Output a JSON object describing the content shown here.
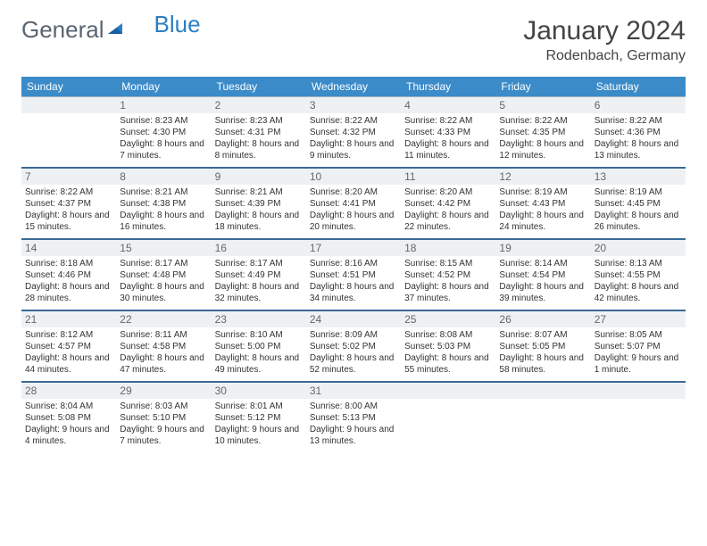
{
  "brand": {
    "part1": "General",
    "part2": "Blue"
  },
  "title": "January 2024",
  "location": "Rodenbach, Germany",
  "colors": {
    "header_bg": "#3b8bc9",
    "header_fg": "#ffffff",
    "daynum_bg": "#eef1f4",
    "row_sep": "#3b6a95",
    "cell_sep": "#a8b5c0",
    "text": "#333333",
    "brand_gray": "#5a6570",
    "brand_blue": "#2b7fc3"
  },
  "weekdays": [
    "Sunday",
    "Monday",
    "Tuesday",
    "Wednesday",
    "Thursday",
    "Friday",
    "Saturday"
  ],
  "weeks": [
    [
      {
        "day": "",
        "sunrise": "",
        "sunset": "",
        "daylight": ""
      },
      {
        "day": "1",
        "sunrise": "Sunrise: 8:23 AM",
        "sunset": "Sunset: 4:30 PM",
        "daylight": "Daylight: 8 hours and 7 minutes."
      },
      {
        "day": "2",
        "sunrise": "Sunrise: 8:23 AM",
        "sunset": "Sunset: 4:31 PM",
        "daylight": "Daylight: 8 hours and 8 minutes."
      },
      {
        "day": "3",
        "sunrise": "Sunrise: 8:22 AM",
        "sunset": "Sunset: 4:32 PM",
        "daylight": "Daylight: 8 hours and 9 minutes."
      },
      {
        "day": "4",
        "sunrise": "Sunrise: 8:22 AM",
        "sunset": "Sunset: 4:33 PM",
        "daylight": "Daylight: 8 hours and 11 minutes."
      },
      {
        "day": "5",
        "sunrise": "Sunrise: 8:22 AM",
        "sunset": "Sunset: 4:35 PM",
        "daylight": "Daylight: 8 hours and 12 minutes."
      },
      {
        "day": "6",
        "sunrise": "Sunrise: 8:22 AM",
        "sunset": "Sunset: 4:36 PM",
        "daylight": "Daylight: 8 hours and 13 minutes."
      }
    ],
    [
      {
        "day": "7",
        "sunrise": "Sunrise: 8:22 AM",
        "sunset": "Sunset: 4:37 PM",
        "daylight": "Daylight: 8 hours and 15 minutes."
      },
      {
        "day": "8",
        "sunrise": "Sunrise: 8:21 AM",
        "sunset": "Sunset: 4:38 PM",
        "daylight": "Daylight: 8 hours and 16 minutes."
      },
      {
        "day": "9",
        "sunrise": "Sunrise: 8:21 AM",
        "sunset": "Sunset: 4:39 PM",
        "daylight": "Daylight: 8 hours and 18 minutes."
      },
      {
        "day": "10",
        "sunrise": "Sunrise: 8:20 AM",
        "sunset": "Sunset: 4:41 PM",
        "daylight": "Daylight: 8 hours and 20 minutes."
      },
      {
        "day": "11",
        "sunrise": "Sunrise: 8:20 AM",
        "sunset": "Sunset: 4:42 PM",
        "daylight": "Daylight: 8 hours and 22 minutes."
      },
      {
        "day": "12",
        "sunrise": "Sunrise: 8:19 AM",
        "sunset": "Sunset: 4:43 PM",
        "daylight": "Daylight: 8 hours and 24 minutes."
      },
      {
        "day": "13",
        "sunrise": "Sunrise: 8:19 AM",
        "sunset": "Sunset: 4:45 PM",
        "daylight": "Daylight: 8 hours and 26 minutes."
      }
    ],
    [
      {
        "day": "14",
        "sunrise": "Sunrise: 8:18 AM",
        "sunset": "Sunset: 4:46 PM",
        "daylight": "Daylight: 8 hours and 28 minutes."
      },
      {
        "day": "15",
        "sunrise": "Sunrise: 8:17 AM",
        "sunset": "Sunset: 4:48 PM",
        "daylight": "Daylight: 8 hours and 30 minutes."
      },
      {
        "day": "16",
        "sunrise": "Sunrise: 8:17 AM",
        "sunset": "Sunset: 4:49 PM",
        "daylight": "Daylight: 8 hours and 32 minutes."
      },
      {
        "day": "17",
        "sunrise": "Sunrise: 8:16 AM",
        "sunset": "Sunset: 4:51 PM",
        "daylight": "Daylight: 8 hours and 34 minutes."
      },
      {
        "day": "18",
        "sunrise": "Sunrise: 8:15 AM",
        "sunset": "Sunset: 4:52 PM",
        "daylight": "Daylight: 8 hours and 37 minutes."
      },
      {
        "day": "19",
        "sunrise": "Sunrise: 8:14 AM",
        "sunset": "Sunset: 4:54 PM",
        "daylight": "Daylight: 8 hours and 39 minutes."
      },
      {
        "day": "20",
        "sunrise": "Sunrise: 8:13 AM",
        "sunset": "Sunset: 4:55 PM",
        "daylight": "Daylight: 8 hours and 42 minutes."
      }
    ],
    [
      {
        "day": "21",
        "sunrise": "Sunrise: 8:12 AM",
        "sunset": "Sunset: 4:57 PM",
        "daylight": "Daylight: 8 hours and 44 minutes."
      },
      {
        "day": "22",
        "sunrise": "Sunrise: 8:11 AM",
        "sunset": "Sunset: 4:58 PM",
        "daylight": "Daylight: 8 hours and 47 minutes."
      },
      {
        "day": "23",
        "sunrise": "Sunrise: 8:10 AM",
        "sunset": "Sunset: 5:00 PM",
        "daylight": "Daylight: 8 hours and 49 minutes."
      },
      {
        "day": "24",
        "sunrise": "Sunrise: 8:09 AM",
        "sunset": "Sunset: 5:02 PM",
        "daylight": "Daylight: 8 hours and 52 minutes."
      },
      {
        "day": "25",
        "sunrise": "Sunrise: 8:08 AM",
        "sunset": "Sunset: 5:03 PM",
        "daylight": "Daylight: 8 hours and 55 minutes."
      },
      {
        "day": "26",
        "sunrise": "Sunrise: 8:07 AM",
        "sunset": "Sunset: 5:05 PM",
        "daylight": "Daylight: 8 hours and 58 minutes."
      },
      {
        "day": "27",
        "sunrise": "Sunrise: 8:05 AM",
        "sunset": "Sunset: 5:07 PM",
        "daylight": "Daylight: 9 hours and 1 minute."
      }
    ],
    [
      {
        "day": "28",
        "sunrise": "Sunrise: 8:04 AM",
        "sunset": "Sunset: 5:08 PM",
        "daylight": "Daylight: 9 hours and 4 minutes."
      },
      {
        "day": "29",
        "sunrise": "Sunrise: 8:03 AM",
        "sunset": "Sunset: 5:10 PM",
        "daylight": "Daylight: 9 hours and 7 minutes."
      },
      {
        "day": "30",
        "sunrise": "Sunrise: 8:01 AM",
        "sunset": "Sunset: 5:12 PM",
        "daylight": "Daylight: 9 hours and 10 minutes."
      },
      {
        "day": "31",
        "sunrise": "Sunrise: 8:00 AM",
        "sunset": "Sunset: 5:13 PM",
        "daylight": "Daylight: 9 hours and 13 minutes."
      },
      {
        "day": "",
        "sunrise": "",
        "sunset": "",
        "daylight": ""
      },
      {
        "day": "",
        "sunrise": "",
        "sunset": "",
        "daylight": ""
      },
      {
        "day": "",
        "sunrise": "",
        "sunset": "",
        "daylight": ""
      }
    ]
  ]
}
